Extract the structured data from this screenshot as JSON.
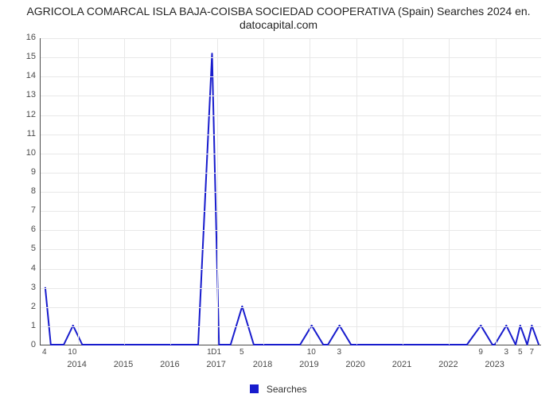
{
  "title_line1": "AGRICOLA COMARCAL ISLA BAJA-COISBA SOCIEDAD COOPERATIVA (Spain) Searches 2024 en.",
  "title_line2": "datocapital.com",
  "legend_label": "Searches",
  "chart": {
    "type": "line",
    "background_color": "#ffffff",
    "grid_color": "#e8e8e8",
    "axis_color": "#4a4a4a",
    "text_color": "#4a4a4a",
    "title_fontsize": 14,
    "tick_fontsize": 11,
    "line_color": "#181ccd",
    "line_width": 2,
    "xlim": [
      2013.2,
      2024.0
    ],
    "ylim": [
      0,
      16
    ],
    "ytick_step": 1,
    "xticks": [
      2014,
      2015,
      2016,
      2017,
      2018,
      2019,
      2020,
      2021,
      2022,
      2023
    ],
    "series": [
      {
        "x": 2013.3,
        "y": 3.0
      },
      {
        "x": 2013.42,
        "y": 0.0
      },
      {
        "x": 2013.7,
        "y": 0.0
      },
      {
        "x": 2013.9,
        "y": 1.0
      },
      {
        "x": 2014.1,
        "y": 0.0
      },
      {
        "x": 2016.6,
        "y": 0.0
      },
      {
        "x": 2016.9,
        "y": 15.2
      },
      {
        "x": 2017.05,
        "y": 0.0
      },
      {
        "x": 2017.3,
        "y": 0.0
      },
      {
        "x": 2017.55,
        "y": 2.0
      },
      {
        "x": 2017.8,
        "y": 0.0
      },
      {
        "x": 2018.8,
        "y": 0.0
      },
      {
        "x": 2019.05,
        "y": 1.0
      },
      {
        "x": 2019.3,
        "y": 0.0
      },
      {
        "x": 2019.4,
        "y": 0.0
      },
      {
        "x": 2019.65,
        "y": 1.0
      },
      {
        "x": 2019.9,
        "y": 0.0
      },
      {
        "x": 2022.4,
        "y": 0.0
      },
      {
        "x": 2022.7,
        "y": 1.0
      },
      {
        "x": 2022.95,
        "y": 0.0
      },
      {
        "x": 2023.0,
        "y": 0.0
      },
      {
        "x": 2023.25,
        "y": 1.0
      },
      {
        "x": 2023.45,
        "y": 0.0
      },
      {
        "x": 2023.55,
        "y": 1.0
      },
      {
        "x": 2023.7,
        "y": 0.0
      },
      {
        "x": 2023.8,
        "y": 1.0
      },
      {
        "x": 2023.95,
        "y": 0.0
      }
    ],
    "point_labels": [
      {
        "x": 2013.3,
        "text": "4"
      },
      {
        "x": 2013.9,
        "text": "10"
      },
      {
        "x": 2016.85,
        "text": "1"
      },
      {
        "x": 2017.0,
        "text": "D1"
      },
      {
        "x": 2017.55,
        "text": "5"
      },
      {
        "x": 2019.05,
        "text": "10"
      },
      {
        "x": 2019.65,
        "text": "3"
      },
      {
        "x": 2022.7,
        "text": "9"
      },
      {
        "x": 2023.25,
        "text": "3"
      },
      {
        "x": 2023.55,
        "text": "5"
      },
      {
        "x": 2023.8,
        "text": "7"
      }
    ]
  }
}
